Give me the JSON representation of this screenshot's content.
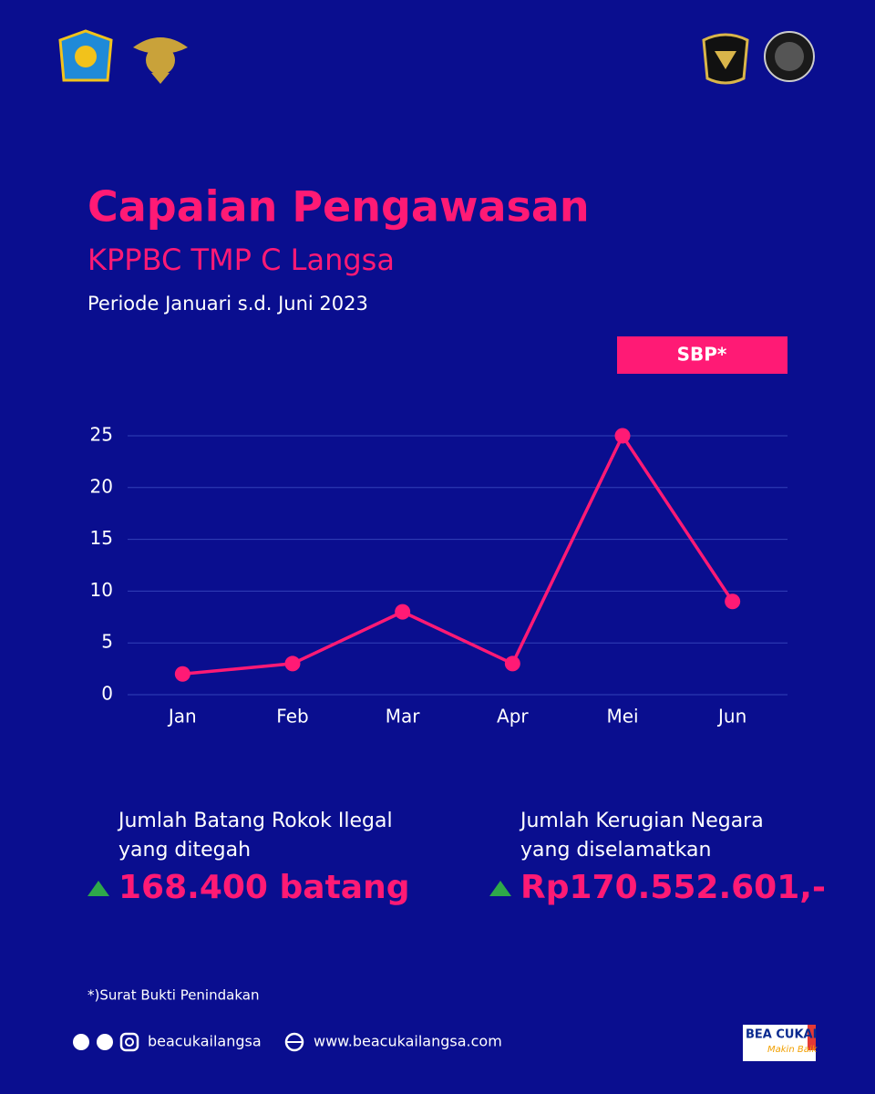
{
  "chart_data": {
    "type": "line",
    "title": "Capaian Pengawasan",
    "subtitle": "KPPBC TMP C Langsa",
    "period": "Periode Januari s.d. Juni 2023",
    "categories": [
      "Jan",
      "Feb",
      "Mar",
      "Apr",
      "Mei",
      "Jun"
    ],
    "series": [
      {
        "name": "SBP*",
        "color": "#ff1a75",
        "values": [
          2,
          3,
          8,
          3,
          25,
          9
        ]
      }
    ],
    "ylim": [
      0,
      25
    ],
    "yticks": [
      0,
      5,
      10,
      15,
      20,
      25
    ],
    "grid": true,
    "legend": "top-right"
  },
  "stats": [
    {
      "label": [
        "Jumlah Batang Rokok Ilegal",
        "yang ditegah"
      ],
      "value": "168.400 batang"
    },
    {
      "label": [
        "Jumlah Kerugian Negara",
        "yang diselamatkan"
      ],
      "value": "Rp170.552.601,-"
    }
  ],
  "footnote": "*)Surat Bukti Penindakan",
  "footer": {
    "social": "beacukailangsa",
    "website": "www.beacukailangsa.com",
    "brand": "BEA CUKAI",
    "tagline": "Makin Baik"
  }
}
